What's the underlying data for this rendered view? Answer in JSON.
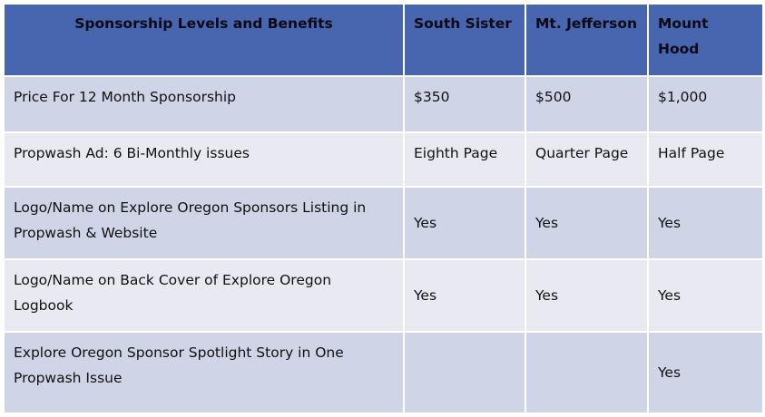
{
  "table": {
    "headers": [
      "Sponsorship Levels and Benefits",
      "South Sister",
      "Mt. Jefferson",
      "Mount Hood"
    ],
    "rows": [
      [
        "Price For 12 Month Sponsorship",
        "$350",
        "$500",
        "$1,000"
      ],
      [
        "Propwash Ad: 6 Bi-Monthly issues",
        "Eighth Page",
        "Quarter Page",
        "Half Page"
      ],
      [
        "Logo/Name on Explore Oregon Sponsors Listing in Propwash & Website",
        "Yes",
        "Yes",
        "Yes"
      ],
      [
        "Logo/Name on Back Cover of Explore Oregon Logbook",
        "Yes",
        "Yes",
        "Yes"
      ],
      [
        "Explore Oregon Sponsor Spotlight Story in One Propwash Issue",
        "",
        "",
        "Yes"
      ]
    ]
  },
  "colors": {
    "header": "#4866AF",
    "row_odd": "#CFD4E6",
    "row_even": "#E8E9F1"
  }
}
